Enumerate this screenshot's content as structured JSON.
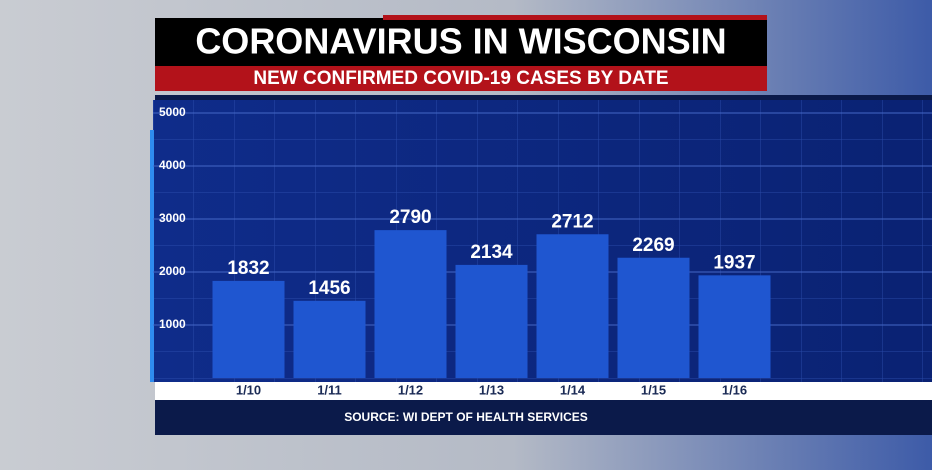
{
  "chart_data": {
    "type": "bar",
    "title": "CORONAVIRUS IN WISCONSIN",
    "subtitle": "NEW CONFIRMED COVID-19 CASES BY DATE",
    "categories": [
      "1/10",
      "1/11",
      "1/12",
      "1/13",
      "1/14",
      "1/15",
      "1/16"
    ],
    "values": [
      1832,
      1456,
      2790,
      2134,
      2712,
      2269,
      1937
    ],
    "color": "#1f56d0",
    "ylim": [
      0,
      5000
    ],
    "yticks": [
      1000,
      2000,
      3000,
      4000,
      5000
    ],
    "grid": true,
    "source": "SOURCE: WI DEPT OF HEALTH SERVICES"
  }
}
